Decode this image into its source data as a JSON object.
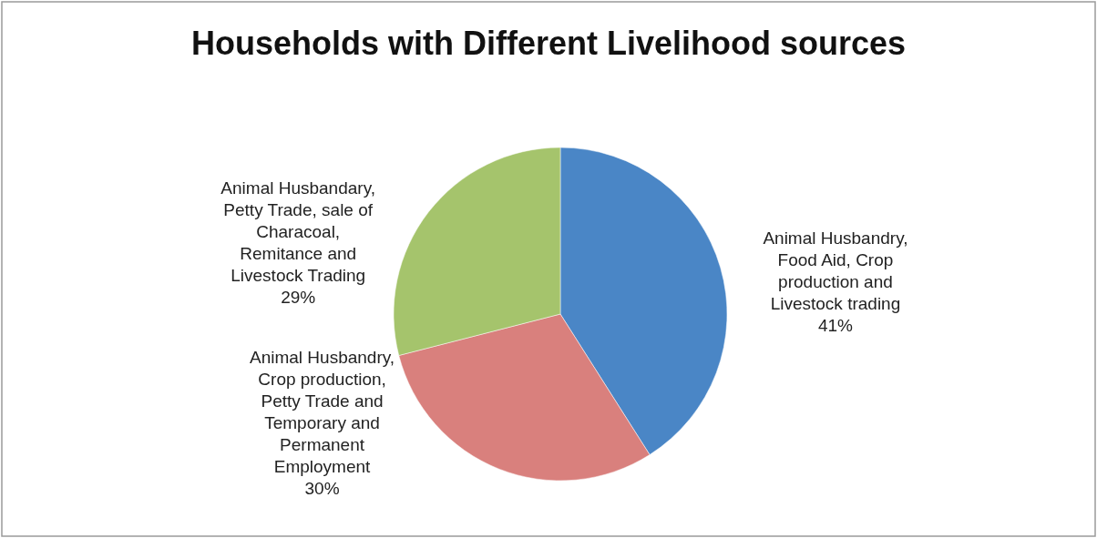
{
  "chart_data": {
    "type": "pie",
    "title": "Households with  Different Livelihood sources",
    "categories": [
      "Animal Husbandry, Food Aid, Crop production and Livestock trading",
      "Animal Husbandry, Crop production, Petty Trade and Temporary and Permanent Employment",
      "Animal Husbandary, Petty Trade, sale of Characoal, Remitance and Livestock Trading"
    ],
    "values": [
      41,
      30,
      29
    ],
    "colors": [
      "#4a86c6",
      "#d9807d",
      "#a5c46c"
    ],
    "value_labels": [
      "41%",
      "30%",
      "29%"
    ]
  }
}
